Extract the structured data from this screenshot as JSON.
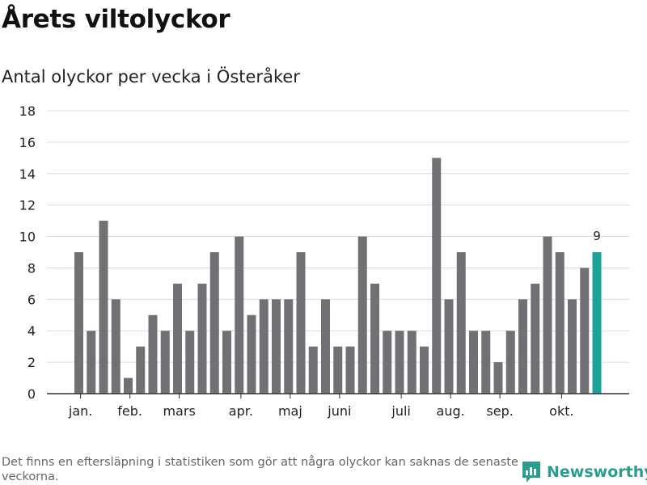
{
  "header": {
    "title": "Årets viltolyckor",
    "subtitle": "Antal olyckor per vecka i Österåker"
  },
  "footer": {
    "note": "Det finns en eftersläpning i statistiken som gör att några olyckor kan saknas de senaste veckorna.",
    "brand": "Newsworthy",
    "brand_color": "#2a9d8f"
  },
  "chart_data": {
    "type": "bar",
    "title": "Årets viltolyckor",
    "subtitle": "Antal olyckor per vecka i Österåker",
    "xlabel": "",
    "ylabel": "",
    "ylim": [
      0,
      18
    ],
    "yticks": [
      0,
      2,
      4,
      6,
      8,
      10,
      12,
      14,
      16,
      18
    ],
    "grid": true,
    "legend": "none",
    "values": [
      9,
      4,
      11,
      6,
      1,
      3,
      5,
      4,
      7,
      4,
      7,
      9,
      4,
      10,
      5,
      6,
      6,
      6,
      9,
      3,
      6,
      3,
      3,
      10,
      7,
      4,
      4,
      4,
      3,
      15,
      6,
      9,
      4,
      4,
      2,
      4,
      6,
      7,
      10,
      9,
      6,
      8,
      9
    ],
    "month_labels": [
      {
        "label": "jan.",
        "bar_index": 0.5
      },
      {
        "label": "feb.",
        "bar_index": 4.5
      },
      {
        "label": "mars",
        "bar_index": 8.5
      },
      {
        "label": "apr.",
        "bar_index": 13.5
      },
      {
        "label": "maj",
        "bar_index": 17.5
      },
      {
        "label": "juni",
        "bar_index": 21.5
      },
      {
        "label": "juli",
        "bar_index": 26.5
      },
      {
        "label": "aug.",
        "bar_index": 30.5
      },
      {
        "label": "sep.",
        "bar_index": 34.5
      },
      {
        "label": "okt.",
        "bar_index": 39.5
      }
    ],
    "highlight_index": 42,
    "highlight_label": "9",
    "bar_color": "#717075",
    "highlight_color": "#1aa39a",
    "grid_color": "#dcdcdc",
    "axis_color": "#333333"
  }
}
